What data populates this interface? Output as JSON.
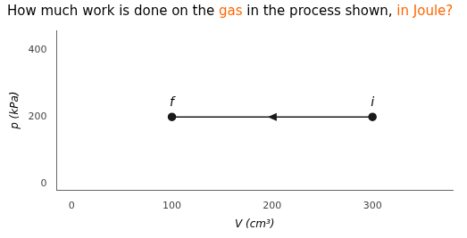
{
  "chart_data": {
    "type": "line",
    "title_parts": [
      {
        "text": "How much work is done on the ",
        "color": "#000000"
      },
      {
        "text": "gas",
        "color": "#FF6600"
      },
      {
        "text": " in the process shown, ",
        "color": "#000000"
      },
      {
        "text": "in Joule?",
        "color": "#FF6600"
      }
    ],
    "xlabel": "V (cm³)",
    "ylabel": "p (kPa)",
    "x": [
      300,
      100
    ],
    "values": [
      200,
      200
    ],
    "color": "#1a1a1a",
    "marker": "circle",
    "annotations": [
      {
        "text": "i",
        "x": 300,
        "y": 200
      },
      {
        "text": "f",
        "x": 100,
        "y": 200
      }
    ],
    "xlim": [
      -15,
      380
    ],
    "ylim": [
      -20,
      460
    ],
    "xticks": [
      0,
      100,
      200,
      300
    ],
    "yticks": [
      0,
      200,
      400
    ],
    "grid": false
  }
}
